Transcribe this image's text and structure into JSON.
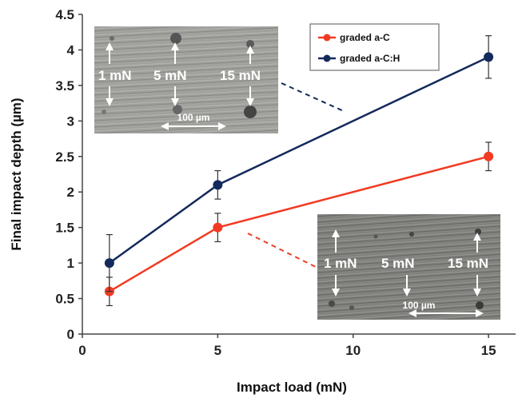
{
  "chart_data": {
    "type": "line",
    "title": "",
    "xlabel": "Impact load (mN)",
    "ylabel": "Final impact depth (µm)",
    "xlim": [
      0,
      16
    ],
    "ylim": [
      0,
      4.5
    ],
    "x_ticks": [
      0,
      5,
      10,
      15
    ],
    "x_tick_labels": [
      "0",
      "5",
      "10",
      "15"
    ],
    "y_ticks": [
      0,
      0.5,
      1,
      1.5,
      2,
      2.5,
      3,
      3.5,
      4,
      4.5
    ],
    "y_tick_labels": [
      "0",
      "0.5",
      "1",
      "1.5",
      "2",
      "2.5",
      "3",
      "3.5",
      "4",
      "4.5"
    ],
    "grid": false,
    "legend_position": "top-right",
    "series": [
      {
        "name": "graded a-C",
        "color": "#f23a22",
        "x": [
          1,
          5,
          15
        ],
        "y": [
          0.6,
          1.5,
          2.5
        ],
        "error": [
          0.2,
          0.2,
          0.2
        ]
      },
      {
        "name": "graded a-C:H",
        "color": "#14295c",
        "x": [
          1,
          5,
          15
        ],
        "y": [
          1.0,
          2.1,
          3.9
        ],
        "error": [
          0.4,
          0.2,
          0.3
        ]
      }
    ]
  },
  "insets": [
    {
      "series_color": "#14295c",
      "labels": [
        "1 mN",
        "5 mN",
        "15 mN"
      ],
      "scale_label": "100 µm"
    },
    {
      "series_color": "#f23a22",
      "labels": [
        "1 mN",
        "5 mN",
        "15 mN"
      ],
      "scale_label": "100 µm"
    }
  ]
}
